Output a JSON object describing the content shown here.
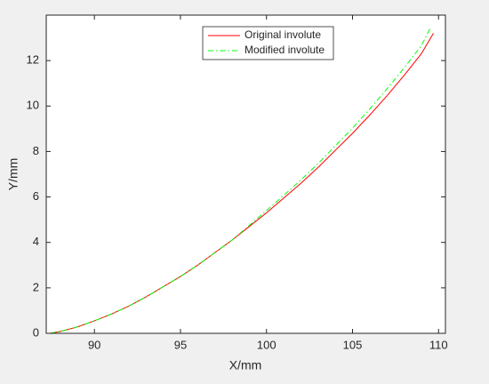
{
  "chart_data": {
    "type": "line",
    "xlabel": "X/mm",
    "ylabel": "Y/mm",
    "xlim": [
      87.2,
      110.4
    ],
    "ylim": [
      0,
      14
    ],
    "xticks": [
      90,
      95,
      100,
      105,
      110
    ],
    "yticks": [
      0,
      2,
      4,
      6,
      8,
      10,
      12
    ],
    "legend": "north",
    "series": [
      {
        "name": "Original involute",
        "color": "#ff0000",
        "dash": "solid",
        "x": [
          87.4,
          88,
          89,
          90,
          91,
          92,
          93,
          94,
          95,
          96,
          97,
          98,
          99,
          100,
          101,
          102,
          103,
          104,
          105,
          106,
          107,
          108,
          109,
          109.7
        ],
        "values": [
          0,
          0.08,
          0.28,
          0.55,
          0.85,
          1.2,
          1.6,
          2.05,
          2.5,
          3.0,
          3.55,
          4.1,
          4.7,
          5.3,
          5.95,
          6.6,
          7.3,
          8.05,
          8.8,
          9.6,
          10.45,
          11.35,
          12.3,
          13.2
        ]
      },
      {
        "name": "Modified involute",
        "color": "#00ff00",
        "dash": "dashdot",
        "x": [
          87.4,
          88,
          89,
          90,
          91,
          92,
          93,
          94,
          95,
          96,
          97,
          98,
          99,
          100,
          101,
          102,
          103,
          104,
          105,
          106,
          107,
          108,
          109,
          109.5
        ],
        "values": [
          0,
          0.08,
          0.28,
          0.55,
          0.85,
          1.2,
          1.6,
          2.05,
          2.5,
          3.0,
          3.55,
          4.1,
          4.75,
          5.4,
          6.07,
          6.75,
          7.47,
          8.25,
          9.03,
          9.87,
          10.75,
          11.68,
          12.65,
          13.4
        ]
      }
    ]
  }
}
